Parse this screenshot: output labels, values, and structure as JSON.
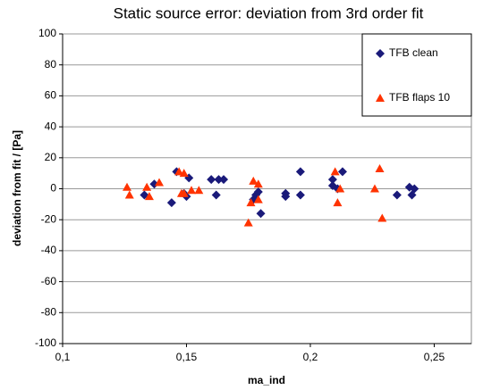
{
  "chart_data": {
    "type": "scatter",
    "title": "Static source error: deviation from 3rd order fit",
    "x_label": "ma_ind",
    "y_label": "deviation from fit / [Pa]",
    "xlim": [
      0.1,
      0.265
    ],
    "ylim": [
      -100,
      100
    ],
    "xticks": [
      {
        "value": 0.1,
        "label": "0,1"
      },
      {
        "value": 0.15,
        "label": "0,15"
      },
      {
        "value": 0.2,
        "label": "0,2"
      },
      {
        "value": 0.25,
        "label": "0,25"
      }
    ],
    "yticks": [
      -100,
      -80,
      -60,
      -40,
      -20,
      0,
      20,
      40,
      60,
      80,
      100
    ],
    "grid": true,
    "legend": "upper right",
    "series": [
      {
        "name": "TFB clean",
        "color": "#1a1a7a",
        "marker": "diamond",
        "x": [
          0.133,
          0.137,
          0.144,
          0.146,
          0.149,
          0.15,
          0.151,
          0.16,
          0.162,
          0.163,
          0.165,
          0.177,
          0.178,
          0.179,
          0.18,
          0.19,
          0.19,
          0.196,
          0.196,
          0.209,
          0.209,
          0.211,
          0.213,
          0.235,
          0.24,
          0.241,
          0.242
        ],
        "values": [
          -4,
          3,
          -9,
          11,
          -3,
          -5,
          7,
          6,
          -4,
          6,
          6,
          -7,
          -4,
          -2,
          -16,
          -3,
          -5,
          -4,
          11,
          6,
          2,
          0,
          11,
          -4,
          1,
          -4,
          0
        ]
      },
      {
        "name": "TFB flaps 10",
        "color": "#ff3300",
        "marker": "triangle",
        "x": [
          0.126,
          0.127,
          0.134,
          0.135,
          0.139,
          0.147,
          0.148,
          0.149,
          0.149,
          0.152,
          0.155,
          0.175,
          0.176,
          0.177,
          0.179,
          0.179,
          0.21,
          0.211,
          0.212,
          0.226,
          0.228,
          0.229
        ],
        "values": [
          1,
          -4,
          1,
          -5,
          4,
          11,
          -3,
          -3,
          10,
          -1,
          -1,
          -22,
          -9,
          5,
          3,
          -7,
          11,
          -9,
          0,
          0,
          13,
          -19
        ]
      }
    ]
  }
}
